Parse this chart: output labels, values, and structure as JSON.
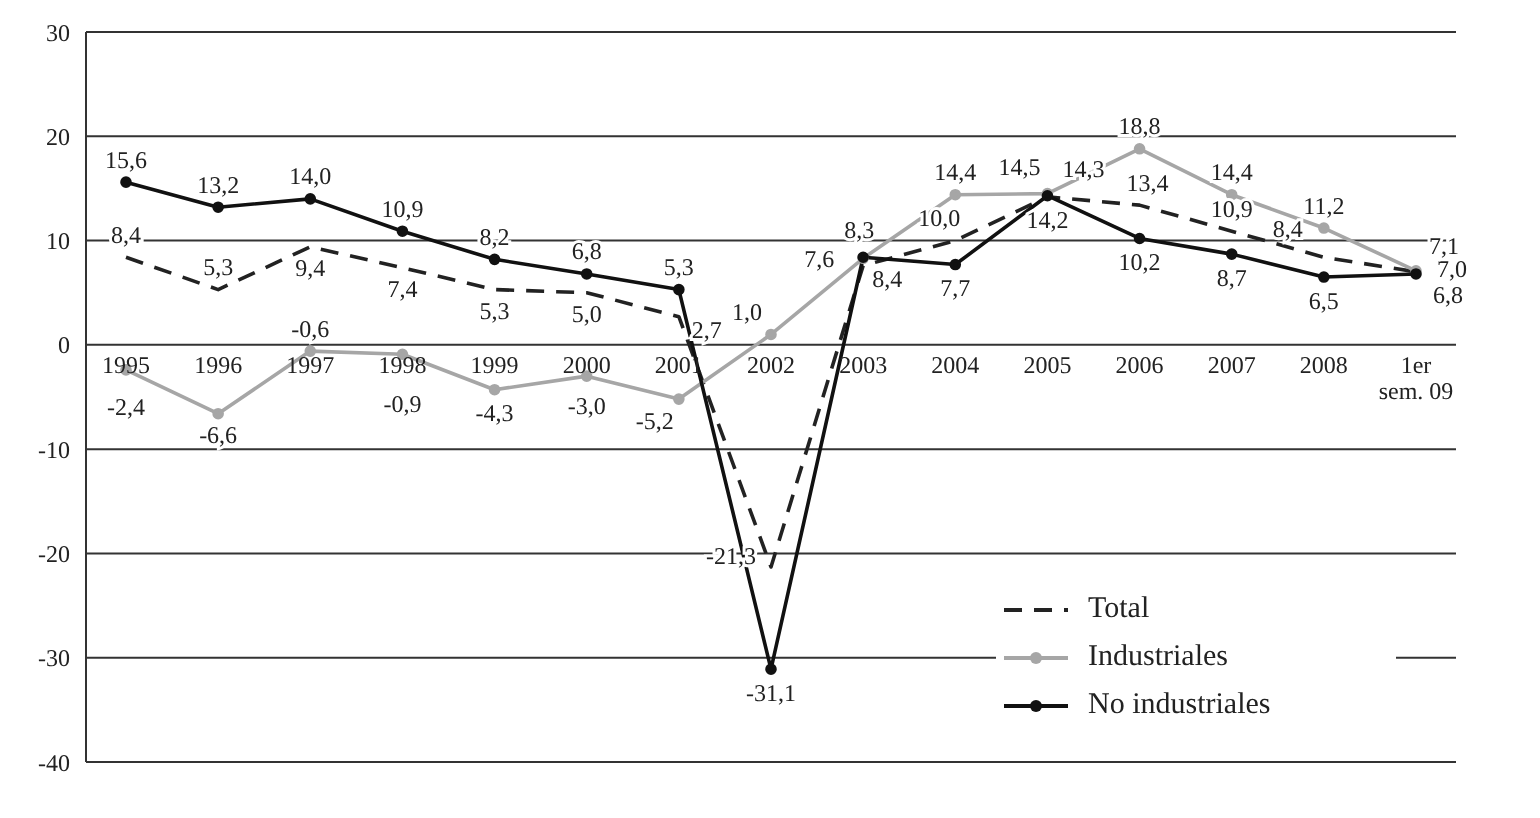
{
  "chart_data": {
    "type": "line",
    "categories": [
      "1995",
      "1996",
      "1997",
      "1998",
      "1999",
      "2000",
      "2001",
      "2002",
      "2003",
      "2004",
      "2005",
      "2006",
      "2007",
      "2008",
      "1er sem. 09"
    ],
    "series": [
      {
        "name": "Total",
        "color": "#222222",
        "line_style": "dashed",
        "marker": "none",
        "values": [
          8.4,
          5.3,
          9.4,
          7.4,
          5.3,
          5.0,
          2.7,
          -21.3,
          7.6,
          10.0,
          14.2,
          13.4,
          10.9,
          8.4,
          7.0
        ],
        "value_labels": [
          "8,4",
          "5,3",
          "9,4",
          "7,4",
          "5,3",
          "5,0",
          "2,7",
          "-21,3",
          "7,6",
          "10,0",
          "14,2",
          "13,4",
          "10,9",
          "8,4",
          "7,0"
        ]
      },
      {
        "name": "Industriales",
        "color": "#a6a6a6",
        "line_style": "solid",
        "marker": "circle",
        "values": [
          -2.4,
          -6.6,
          -0.6,
          -0.9,
          -4.3,
          -3.0,
          -5.2,
          1.0,
          8.3,
          14.4,
          14.5,
          18.8,
          14.4,
          11.2,
          7.1
        ],
        "value_labels": [
          "-2,4",
          "-6,6",
          "-0,6",
          "-0,9",
          "-4,3",
          "-3,0",
          "-5,2",
          "1,0",
          "8,3",
          "14,4",
          "14,5",
          "18,8",
          "14,4",
          "11,2",
          "7,1"
        ]
      },
      {
        "name": "No industriales",
        "color": "#111111",
        "line_style": "solid",
        "marker": "circle",
        "values": [
          15.6,
          13.2,
          14.0,
          10.9,
          8.2,
          6.8,
          5.3,
          -31.1,
          8.4,
          7.7,
          14.3,
          10.2,
          8.7,
          6.5,
          6.8
        ],
        "value_labels": [
          "15,6",
          "13,2",
          "14,0",
          "10,9",
          "8,2",
          "6,8",
          "5,3",
          "-31,1",
          "8,4",
          "7,7",
          "14,3",
          "10,2",
          "8,7",
          "6,5",
          "6,8"
        ]
      }
    ],
    "ylim": [
      -40,
      30
    ],
    "yticks": [
      -40,
      -30,
      -20,
      -10,
      0,
      10,
      20,
      30
    ],
    "grid": "y",
    "legend": "bottom right"
  }
}
